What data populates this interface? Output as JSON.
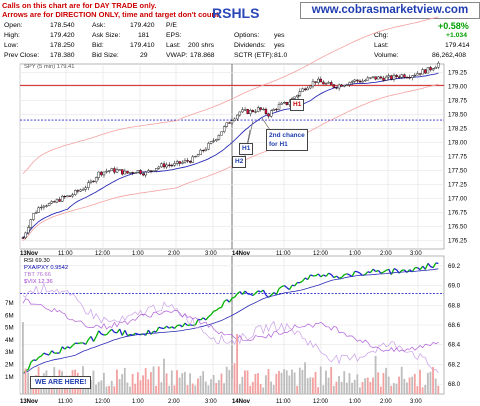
{
  "notes": {
    "line1": "Calls on this chart are for DAY TRADE only.",
    "line2": "Arrows are for DIRECTION ONLY, time and target don't count."
  },
  "ticker": "RSHLS",
  "site": "www.cobrasmarketview.com",
  "stats": {
    "open_label": "Open:",
    "open": "178.540",
    "high_label": "High:",
    "high": "179.420",
    "low_label": "Low:",
    "low": "178.250",
    "prev_label": "Prev Close:",
    "prev": "178.380",
    "ask_label": "Ask:",
    "ask": "179.420",
    "asksize_label": "Ask Size:",
    "asksize": "181",
    "bid_label": "Bid:",
    "bid": "179.410",
    "bidsize_label": "Bid Size:",
    "bidsize": "29",
    "pe_label": "P/E",
    "eps_label": "EPS:",
    "last_label": "Last:",
    "last": "200 shrs",
    "vwap_label": "VWAP:",
    "vwap": "178.868",
    "options_label": "Options:",
    "options": "yes",
    "div_label": "Dividends:",
    "div": "yes",
    "sctr_label": "SCTR (ETF):",
    "sctr": "81.0",
    "chg_pct": "+0.58%",
    "chg_label": "Chg:",
    "chg": "+1.034",
    "lastp_label": "Last:",
    "lastp": "179.414",
    "vol_label": "Volume:",
    "vol": "86,262,408"
  },
  "price_legend": "SPY (5 min) 179.41",
  "rsi_legend": "RSI 69.30",
  "ind_legend1": "PXA/PXY 0.9542",
  "ind_legend2": "TBT 76.66",
  "ind_legend3": "$VIX 12.36",
  "callouts": {
    "h1a": "H1",
    "h2": "H2",
    "h1b": "H1",
    "second": "2nd chance",
    "second2": "for H1"
  },
  "we_are_here": "WE ARE HERE!",
  "colors": {
    "up_candle": "#ffffff",
    "down_candle": "#e0103a",
    "ma_blue": "#2b2bb8",
    "ma_pink": "#f5a0a0",
    "hline_red": "#cc0000",
    "hline_blue": "#2b2bd0",
    "rsi_green": "#00b000"
  },
  "chart_data": [
    {
      "type": "candlestick",
      "title": "SPY (5 min) 179.41",
      "x_ticks": [
        "13Nov",
        "11:00",
        "12:00",
        "1:00",
        "2:00",
        "3:00",
        "14Nov",
        "11:00",
        "12:00",
        "1:00",
        "2:00",
        "3:00"
      ],
      "y_ticks": [
        179.25,
        179.0,
        178.75,
        178.5,
        178.25,
        178.0,
        177.75,
        177.5,
        177.25,
        177.0,
        176.75,
        176.5,
        176.25
      ],
      "ylim": [
        176.1,
        179.4
      ],
      "close_path": [
        176.3,
        176.7,
        176.9,
        176.9,
        177.0,
        177.05,
        177.15,
        177.25,
        177.45,
        177.5,
        177.5,
        177.45,
        177.5,
        177.45,
        177.55,
        177.6,
        177.6,
        177.65,
        177.7,
        177.85,
        178.0,
        178.2,
        178.4,
        178.55,
        178.55,
        178.6,
        178.5,
        178.65,
        178.7,
        178.85,
        179.0,
        179.1,
        179.05,
        179.0,
        179.05,
        179.1,
        179.1,
        179.15,
        179.15,
        179.15,
        179.2,
        179.2,
        179.25,
        179.3,
        179.41
      ],
      "hlines": [
        {
          "value": 179.02,
          "color": "#cc0000",
          "style": "solid"
        },
        {
          "value": 178.4,
          "color": "#2b2bd0",
          "style": "dashed"
        }
      ]
    },
    {
      "type": "line",
      "title": "RSI 69.30",
      "y_ticks": [
        69.2,
        69.0,
        68.8,
        68.6,
        68.4,
        68.2,
        68.0
      ],
      "volume_ticks": [
        "7M",
        "6M",
        "5M",
        "4M",
        "3M",
        "2M",
        "1M"
      ],
      "hlines": [
        {
          "value": 68.92,
          "color": "#2b2bd0",
          "style": "dashed"
        }
      ]
    }
  ]
}
